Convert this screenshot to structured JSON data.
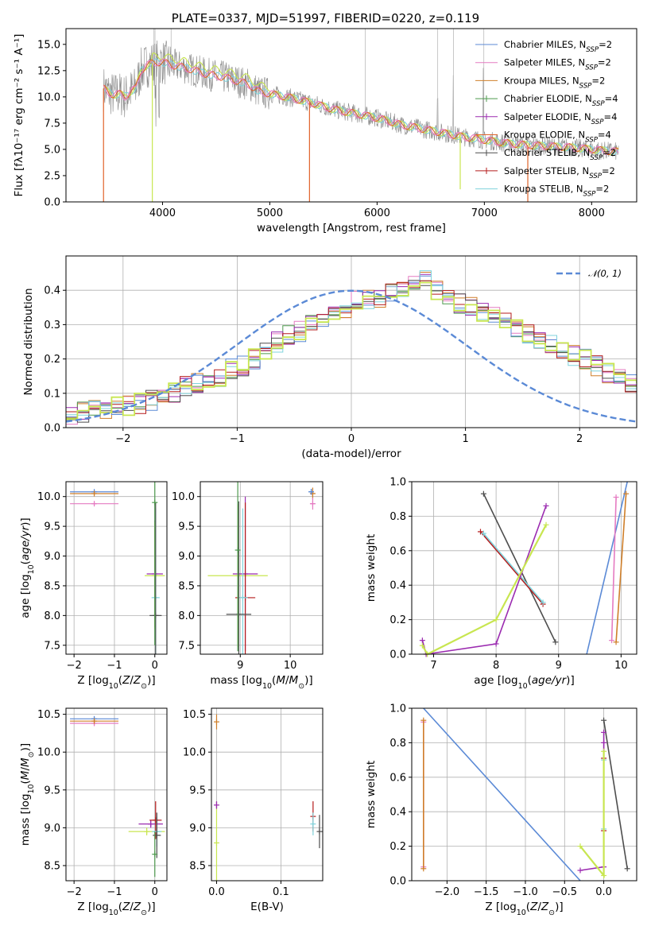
{
  "figure": {
    "title": "PLATE=0337, MJD=51997, FIBERID=0220, z=0.119"
  },
  "colors": {
    "Chabrier MILES": "#5b8ad6",
    "Salpeter MILES": "#e57bc2",
    "Kroupa MILES": "#cf7f2a",
    "Chabrier ELODIE": "#4e9a4e",
    "Salpeter ELODIE": "#9b2bb0",
    "Kroupa ELODIE": "#e0632a",
    "Chabrier STELIB": "#4d4d4d",
    "Salpeter STELIB": "#b51b1b",
    "Kroupa STELIB": "#7fd3dc",
    "greenyellow": "#c8e650",
    "data": "#888888",
    "normal": "#5b8ad6",
    "grid": "#b0b0b0"
  },
  "chart_data": [
    {
      "panel": "spectrum",
      "type": "line",
      "xlabel": "wavelength [Angstrom, rest frame]",
      "ylabel": "Flux [fλ10⁻¹⁷ erg cm⁻² s⁻¹ A⁻¹]",
      "xlim": [
        3100,
        8420
      ],
      "ylim": [
        0,
        16.5
      ],
      "xticks": [
        4000,
        5000,
        6000,
        7000,
        8000
      ],
      "yticks": [
        0.0,
        2.5,
        5.0,
        7.5,
        10.0,
        12.5,
        15.0
      ],
      "grid": false,
      "legend_position": "top-right",
      "continuum": {
        "x": [
          3450,
          3500,
          3550,
          3600,
          3650,
          3700,
          3750,
          3800,
          3850,
          3900,
          3950,
          4000,
          4100,
          4200,
          4300,
          4400,
          4500,
          4600,
          4700,
          4800,
          4900,
          5000,
          5200,
          5400,
          5600,
          5800,
          6000,
          6200,
          6400,
          6600,
          6800,
          7000,
          7200,
          7400,
          7600,
          7800,
          8000,
          8200
        ],
        "y": [
          10.8,
          10.4,
          10.2,
          10.3,
          10.0,
          10.5,
          10.8,
          12.5,
          13.0,
          13.2,
          13.3,
          13.3,
          13.0,
          12.8,
          12.5,
          12.2,
          12.0,
          11.8,
          11.5,
          11.2,
          10.5,
          10.3,
          9.9,
          9.4,
          8.8,
          8.4,
          8.0,
          7.4,
          7.0,
          6.6,
          6.2,
          5.9,
          5.6,
          5.4,
          5.3,
          5.2,
          5.0,
          4.8
        ]
      },
      "spikes_to_zero": [
        3450,
        3905,
        5370,
        7405
      ],
      "series": [
        {
          "name": "Chabrier MILES, N_SSP=2",
          "label_main": "Chabrier MILES, N",
          "label_sub": "SSP",
          "label_tail": "=2",
          "color_key": "Chabrier MILES",
          "style": "line"
        },
        {
          "name": "Salpeter MILES, N_SSP=2",
          "label_main": "Salpeter MILES, N",
          "label_sub": "SSP",
          "label_tail": "=2",
          "color_key": "Salpeter MILES",
          "style": "line"
        },
        {
          "name": "Kroupa MILES, N_SSP=2",
          "label_main": "Kroupa MILES, N",
          "label_sub": "SSP",
          "label_tail": "=2",
          "color_key": "Kroupa MILES",
          "style": "line"
        },
        {
          "name": "Chabrier ELODIE, N_SSP=4",
          "label_main": "Chabrier ELODIE, N",
          "label_sub": "SSP",
          "label_tail": "=4",
          "color_key": "Chabrier ELODIE",
          "style": "cross"
        },
        {
          "name": "Salpeter ELODIE, N_SSP=4",
          "label_main": "Salpeter ELODIE, N",
          "label_sub": "SSP",
          "label_tail": "=4",
          "color_key": "Salpeter ELODIE",
          "style": "cross"
        },
        {
          "name": "Kroupa ELODIE, N_SSP=4",
          "label_main": "Kroupa ELODIE, N",
          "label_sub": "SSP",
          "label_tail": "=4",
          "color_key": "Kroupa ELODIE",
          "style": "line"
        },
        {
          "name": "Chabrier STELIB, N_SSP=2",
          "label_main": "Chabrier STELIB, N",
          "label_sub": "SSP",
          "label_tail": "=2",
          "color_key": "Chabrier STELIB",
          "style": "cross"
        },
        {
          "name": "Salpeter STELIB, N_SSP=2",
          "label_main": "Salpeter STELIB, N",
          "label_sub": "SSP",
          "label_tail": "=2",
          "color_key": "Salpeter STELIB",
          "style": "cross"
        },
        {
          "name": "Kroupa STELIB, N_SSP=2",
          "label_main": "Kroupa STELIB, N",
          "label_sub": "SSP",
          "label_tail": "=2",
          "color_key": "Kroupa STELIB",
          "style": "line"
        }
      ]
    },
    {
      "panel": "residual_hist",
      "type": "line",
      "xlabel": "(data-model)/error",
      "ylabel": "Normed distribution",
      "xlim": [
        -2.5,
        2.5
      ],
      "ylim": [
        0,
        0.5
      ],
      "xticks": [
        -2,
        -1,
        0,
        1,
        2
      ],
      "yticks": [
        0.0,
        0.1,
        0.2,
        0.3,
        0.4
      ],
      "grid": true,
      "legend_position": "top-right",
      "legend_label": "𝒩(0, 1)",
      "normal": {
        "mu": 0,
        "sigma": 1
      },
      "bin_edges_from": -2.5,
      "bin_width": 0.1,
      "hist_base": [
        0.04,
        0.045,
        0.05,
        0.055,
        0.06,
        0.065,
        0.07,
        0.08,
        0.09,
        0.1,
        0.12,
        0.13,
        0.14,
        0.15,
        0.17,
        0.18,
        0.2,
        0.22,
        0.25,
        0.27,
        0.28,
        0.3,
        0.31,
        0.33,
        0.35,
        0.37,
        0.37,
        0.38,
        0.39,
        0.4,
        0.42,
        0.43,
        0.4,
        0.38,
        0.36,
        0.35,
        0.34,
        0.33,
        0.31,
        0.29,
        0.27,
        0.26,
        0.24,
        0.22,
        0.21,
        0.2,
        0.18,
        0.16,
        0.15,
        0.13,
        0.12,
        0.11,
        0.1,
        0.09,
        0.08,
        0.07,
        0.06,
        0.05,
        0.045,
        0.04
      ]
    },
    {
      "panel": "age_vs_Z",
      "type": "scatter",
      "xlabel": "Z [log10(Z/Z⊙)]",
      "ylabel": "age  [log10(age/yr)]",
      "xlim": [
        -2.2,
        0.3
      ],
      "ylim": [
        7.35,
        10.25
      ],
      "xticks": [
        -2,
        -1,
        0
      ],
      "yticks": [
        7.5,
        8.0,
        8.5,
        9.0,
        9.5,
        10.0
      ],
      "grid": true,
      "points": [
        {
          "x": -1.5,
          "y": 10.08,
          "xerr": 0.6,
          "yerr": 0.03,
          "color_key": "Chabrier MILES"
        },
        {
          "x": -1.5,
          "y": 9.88,
          "xerr": 0.6,
          "yerr": 0.03,
          "color_key": "Salpeter MILES"
        },
        {
          "x": -1.5,
          "y": 10.05,
          "xerr": 0.6,
          "yerr": 0.03,
          "color_key": "Kroupa MILES"
        },
        {
          "x": 0.0,
          "y": 8.7,
          "xerr": 0.2,
          "yerr": 0.9,
          "color_key": "Salpeter ELODIE"
        },
        {
          "x": 0.0,
          "y": 8.67,
          "xerr": 0.25,
          "yerr": 0.9,
          "color_key": "greenyellow"
        },
        {
          "x": 0.02,
          "y": 8.3,
          "xerr": 0.1,
          "yerr": 1.5,
          "color_key": "Kroupa STELIB"
        },
        {
          "x": 0.02,
          "y": 8.0,
          "xerr": 0.15,
          "yerr": 1.9,
          "color_key": "Chabrier STELIB"
        },
        {
          "x": 0.0,
          "y": 9.9,
          "xerr": 0.02,
          "yerr": 2.4,
          "color_key": "Chabrier ELODIE"
        }
      ]
    },
    {
      "panel": "age_vs_mass",
      "type": "scatter",
      "xlabel": "mass [log10(M/M⊙)]",
      "ylabel": "",
      "xlim": [
        8.2,
        10.65
      ],
      "ylim": [
        7.35,
        10.25
      ],
      "xticks": [
        9,
        10
      ],
      "yticks": [
        7.5,
        8.0,
        8.5,
        9.0,
        9.5,
        10.0
      ],
      "grid": true,
      "points": [
        {
          "x": 10.45,
          "y": 10.05,
          "xerr": 0.05,
          "yerr": 0.1,
          "color_key": "Kroupa MILES"
        },
        {
          "x": 10.45,
          "y": 9.88,
          "xerr": 0.05,
          "yerr": 0.1,
          "color_key": "Salpeter MILES"
        },
        {
          "x": 10.42,
          "y": 10.08,
          "xerr": 0.05,
          "yerr": 0.05,
          "color_key": "Chabrier MILES"
        },
        {
          "x": 8.95,
          "y": 8.67,
          "xerr": 0.6,
          "yerr": 1.2,
          "color_key": "greenyellow"
        },
        {
          "x": 9.1,
          "y": 8.7,
          "xerr": 0.25,
          "yerr": 1.3,
          "color_key": "Salpeter ELODIE"
        },
        {
          "x": 9.1,
          "y": 8.3,
          "xerr": 0.2,
          "yerr": 1.6,
          "color_key": "Salpeter STELIB"
        },
        {
          "x": 9.05,
          "y": 8.3,
          "xerr": 0.1,
          "yerr": 1.5,
          "color_key": "Kroupa STELIB"
        },
        {
          "x": 8.97,
          "y": 8.02,
          "xerr": 0.25,
          "yerr": 1.9,
          "color_key": "Chabrier STELIB"
        },
        {
          "x": 8.95,
          "y": 9.1,
          "xerr": 0.02,
          "yerr": 1.7,
          "color_key": "Chabrier ELODIE"
        }
      ]
    },
    {
      "panel": "weight_vs_age",
      "type": "line",
      "xlabel": "age  [log10(age/yr)]",
      "ylabel": "mass weight",
      "xlim": [
        6.65,
        10.25
      ],
      "ylim": [
        0,
        1.0
      ],
      "xticks": [
        7,
        8,
        9,
        10
      ],
      "yticks": [
        0.0,
        0.2,
        0.4,
        0.6,
        0.8,
        1.0
      ],
      "grid": true,
      "series": [
        {
          "color_key": "Chabrier MILES",
          "x": [
            9.45,
            10.1
          ],
          "y": [
            0.0,
            1.0
          ],
          "markers": false
        },
        {
          "color_key": "Salpeter MILES",
          "x": [
            9.85,
            9.92
          ],
          "y": [
            0.08,
            0.91
          ],
          "markers": true
        },
        {
          "color_key": "Kroupa MILES",
          "x": [
            9.92,
            10.08
          ],
          "y": [
            0.07,
            0.93
          ],
          "markers": true
        },
        {
          "color_key": "Chabrier STELIB",
          "x": [
            7.8,
            8.95
          ],
          "y": [
            0.93,
            0.07
          ],
          "markers": true
        },
        {
          "color_key": "Salpeter STELIB",
          "x": [
            7.75,
            8.75
          ],
          "y": [
            0.71,
            0.29
          ],
          "markers": true
        },
        {
          "color_key": "Kroupa STELIB",
          "x": [
            7.8,
            8.75
          ],
          "y": [
            0.7,
            0.3
          ],
          "markers": true
        },
        {
          "color_key": "Salpeter ELODIE",
          "x": [
            6.82,
            6.88,
            8.0,
            8.8
          ],
          "y": [
            0.08,
            0.0,
            0.06,
            0.86
          ],
          "markers": true
        },
        {
          "color_key": "greenyellow",
          "x": [
            6.82,
            6.9,
            8.0,
            8.8
          ],
          "y": [
            0.05,
            0.0,
            0.2,
            0.75
          ],
          "markers": true
        }
      ]
    },
    {
      "panel": "mass_vs_Z",
      "type": "scatter",
      "xlabel": "Z [log10(Z/Z⊙)]",
      "ylabel": "mass [log10(M/M⊙)]",
      "xlim": [
        -2.2,
        0.3
      ],
      "ylim": [
        8.3,
        10.58
      ],
      "xticks": [
        -2,
        -1,
        0
      ],
      "yticks": [
        8.5,
        9.0,
        9.5,
        10.0,
        10.5
      ],
      "grid": true,
      "points": [
        {
          "x": -1.5,
          "y": 10.44,
          "xerr": 0.6,
          "yerr": 0.03,
          "color_key": "Chabrier MILES"
        },
        {
          "x": -1.5,
          "y": 10.38,
          "xerr": 0.6,
          "yerr": 0.03,
          "color_key": "Salpeter MILES"
        },
        {
          "x": -1.5,
          "y": 10.41,
          "xerr": 0.6,
          "yerr": 0.03,
          "color_key": "Kroupa MILES"
        },
        {
          "x": -0.2,
          "y": 8.95,
          "xerr": 0.45,
          "yerr": 0.05,
          "color_key": "greenyellow"
        },
        {
          "x": -0.1,
          "y": 9.05,
          "xerr": 0.3,
          "yerr": 0.05,
          "color_key": "Salpeter ELODIE"
        },
        {
          "x": 0.02,
          "y": 9.1,
          "xerr": 0.15,
          "yerr": 0.25,
          "color_key": "Salpeter STELIB"
        },
        {
          "x": 0.05,
          "y": 8.95,
          "xerr": 0.12,
          "yerr": 0.2,
          "color_key": "Kroupa STELIB"
        },
        {
          "x": 0.05,
          "y": 8.9,
          "xerr": 0.1,
          "yerr": 0.3,
          "color_key": "Chabrier STELIB"
        },
        {
          "x": 0.0,
          "y": 8.65,
          "xerr": 0.02,
          "yerr": 0.3,
          "color_key": "Chabrier ELODIE"
        }
      ]
    },
    {
      "panel": "mass_vs_ebv",
      "type": "scatter",
      "xlabel": "E(B-V)",
      "ylabel": "",
      "xlim": [
        -0.008,
        0.165
      ],
      "ylim": [
        8.3,
        10.58
      ],
      "xticks": [
        0.0,
        0.1
      ],
      "yticks": [
        8.5,
        9.0,
        9.5,
        10.0,
        10.5
      ],
      "grid": true,
      "points": [
        {
          "x": 0.0,
          "y": 10.4,
          "xerr": 0.0,
          "yerr": 0.1,
          "color_key": "Kroupa MILES"
        },
        {
          "x": 0.0,
          "y": 8.8,
          "xerr": 0.0,
          "yerr": 0.55,
          "color_key": "greenyellow"
        },
        {
          "x": 0.0,
          "y": 9.3,
          "xerr": 0.0,
          "yerr": 0.05,
          "color_key": "Salpeter ELODIE"
        },
        {
          "x": 0.15,
          "y": 9.15,
          "xerr": 0.0,
          "yerr": 0.2,
          "color_key": "Salpeter STELIB"
        },
        {
          "x": 0.15,
          "y": 9.05,
          "xerr": 0.0,
          "yerr": 0.15,
          "color_key": "Kroupa STELIB"
        },
        {
          "x": 0.16,
          "y": 8.95,
          "xerr": 0.0,
          "yerr": 0.22,
          "color_key": "Chabrier STELIB"
        }
      ]
    },
    {
      "panel": "weight_vs_Z",
      "type": "line",
      "xlabel": "Z [log10(Z/Z⊙)]",
      "ylabel": "mass weight",
      "xlim": [
        -2.45,
        0.42
      ],
      "ylim": [
        0,
        1.0
      ],
      "xticks": [
        -2.0,
        -1.5,
        -1.0,
        -0.5,
        0.0
      ],
      "yticks": [
        0.0,
        0.2,
        0.4,
        0.6,
        0.8,
        1.0
      ],
      "grid": true,
      "series": [
        {
          "color_key": "Chabrier MILES",
          "x": [
            -2.3,
            -0.3
          ],
          "y": [
            1.0,
            0.0
          ],
          "markers": false
        },
        {
          "color_key": "Salpeter MILES",
          "x": [
            -2.3,
            -2.3
          ],
          "y": [
            0.08,
            0.92
          ],
          "markers": true
        },
        {
          "color_key": "Kroupa MILES",
          "x": [
            -2.3,
            -2.3
          ],
          "y": [
            0.07,
            0.93
          ],
          "markers": true
        },
        {
          "color_key": "Chabrier STELIB",
          "x": [
            0.0,
            0.3
          ],
          "y": [
            0.93,
            0.07
          ],
          "markers": true
        },
        {
          "color_key": "Salpeter STELIB",
          "x": [
            0.0,
            0.0
          ],
          "y": [
            0.71,
            0.29
          ],
          "markers": true
        },
        {
          "color_key": "Kroupa STELIB",
          "x": [
            0.0,
            0.0
          ],
          "y": [
            0.7,
            0.3
          ],
          "markers": true
        },
        {
          "color_key": "Salpeter ELODIE",
          "x": [
            -0.3,
            0.0,
            0.0,
            0.0
          ],
          "y": [
            0.06,
            0.08,
            0.8,
            0.86
          ],
          "markers": true
        },
        {
          "color_key": "greenyellow",
          "x": [
            -0.3,
            0.0,
            0.0
          ],
          "y": [
            0.2,
            0.03,
            0.75
          ],
          "markers": true
        }
      ]
    }
  ]
}
